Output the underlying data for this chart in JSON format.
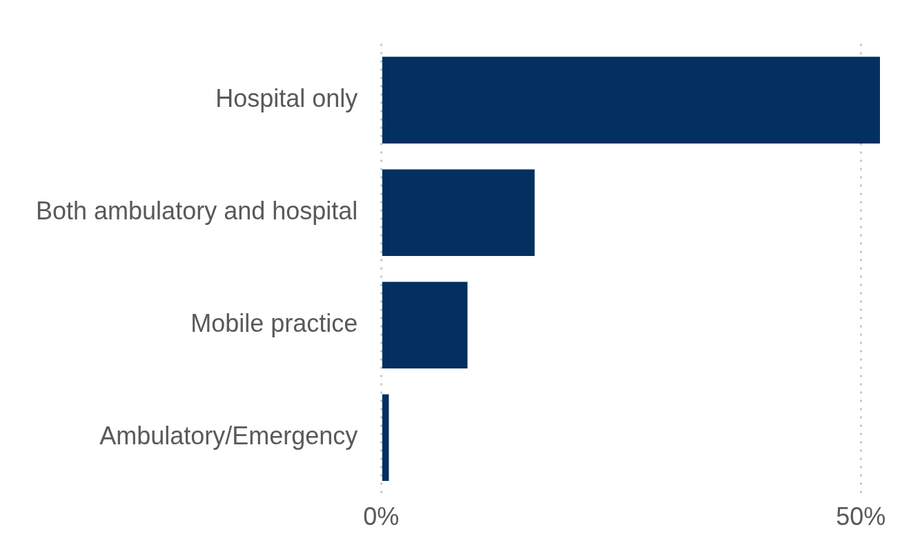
{
  "chart_data": {
    "type": "bar",
    "orientation": "horizontal",
    "categories": [
      "Hospital only",
      "Both ambulatory and hospital",
      "Mobile practice",
      "Ambulatory/Emergency"
    ],
    "values": [
      52,
      16,
      9,
      0.8
    ],
    "color": "#03305f",
    "xlim": [
      0,
      52
    ],
    "xticks": [
      {
        "value": 0,
        "label": "0%"
      },
      {
        "value": 50,
        "label": "50%"
      }
    ],
    "grid": "x",
    "legend": false
  }
}
